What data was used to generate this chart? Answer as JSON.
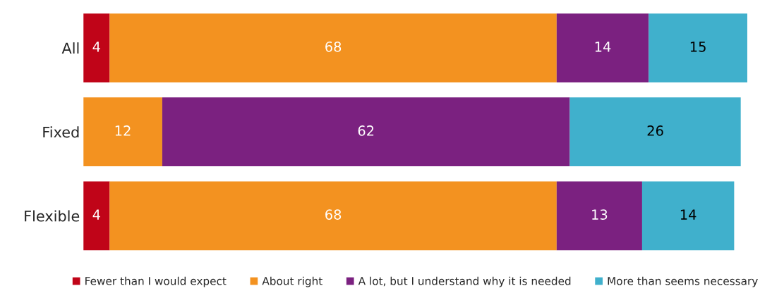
{
  "chart_data": {
    "type": "bar",
    "orientation": "horizontal",
    "stacked": true,
    "categories": [
      "All",
      "Fixed",
      "Flexible"
    ],
    "series": [
      {
        "name": "Fewer than I would expect",
        "color": "#c00418",
        "values": [
          4,
          null,
          4
        ]
      },
      {
        "name": "About right",
        "color": "#f39220",
        "values": [
          68,
          12,
          68
        ]
      },
      {
        "name": "A lot, but I understand why it is needed",
        "color": "#7b2180",
        "values": [
          14,
          62,
          13
        ]
      },
      {
        "name": "More than seems necessary",
        "color": "#40b0cc",
        "values": [
          15,
          26,
          14
        ]
      }
    ],
    "data_labels": true,
    "legend": "bottom",
    "grid": false,
    "tick_labels": "y"
  }
}
